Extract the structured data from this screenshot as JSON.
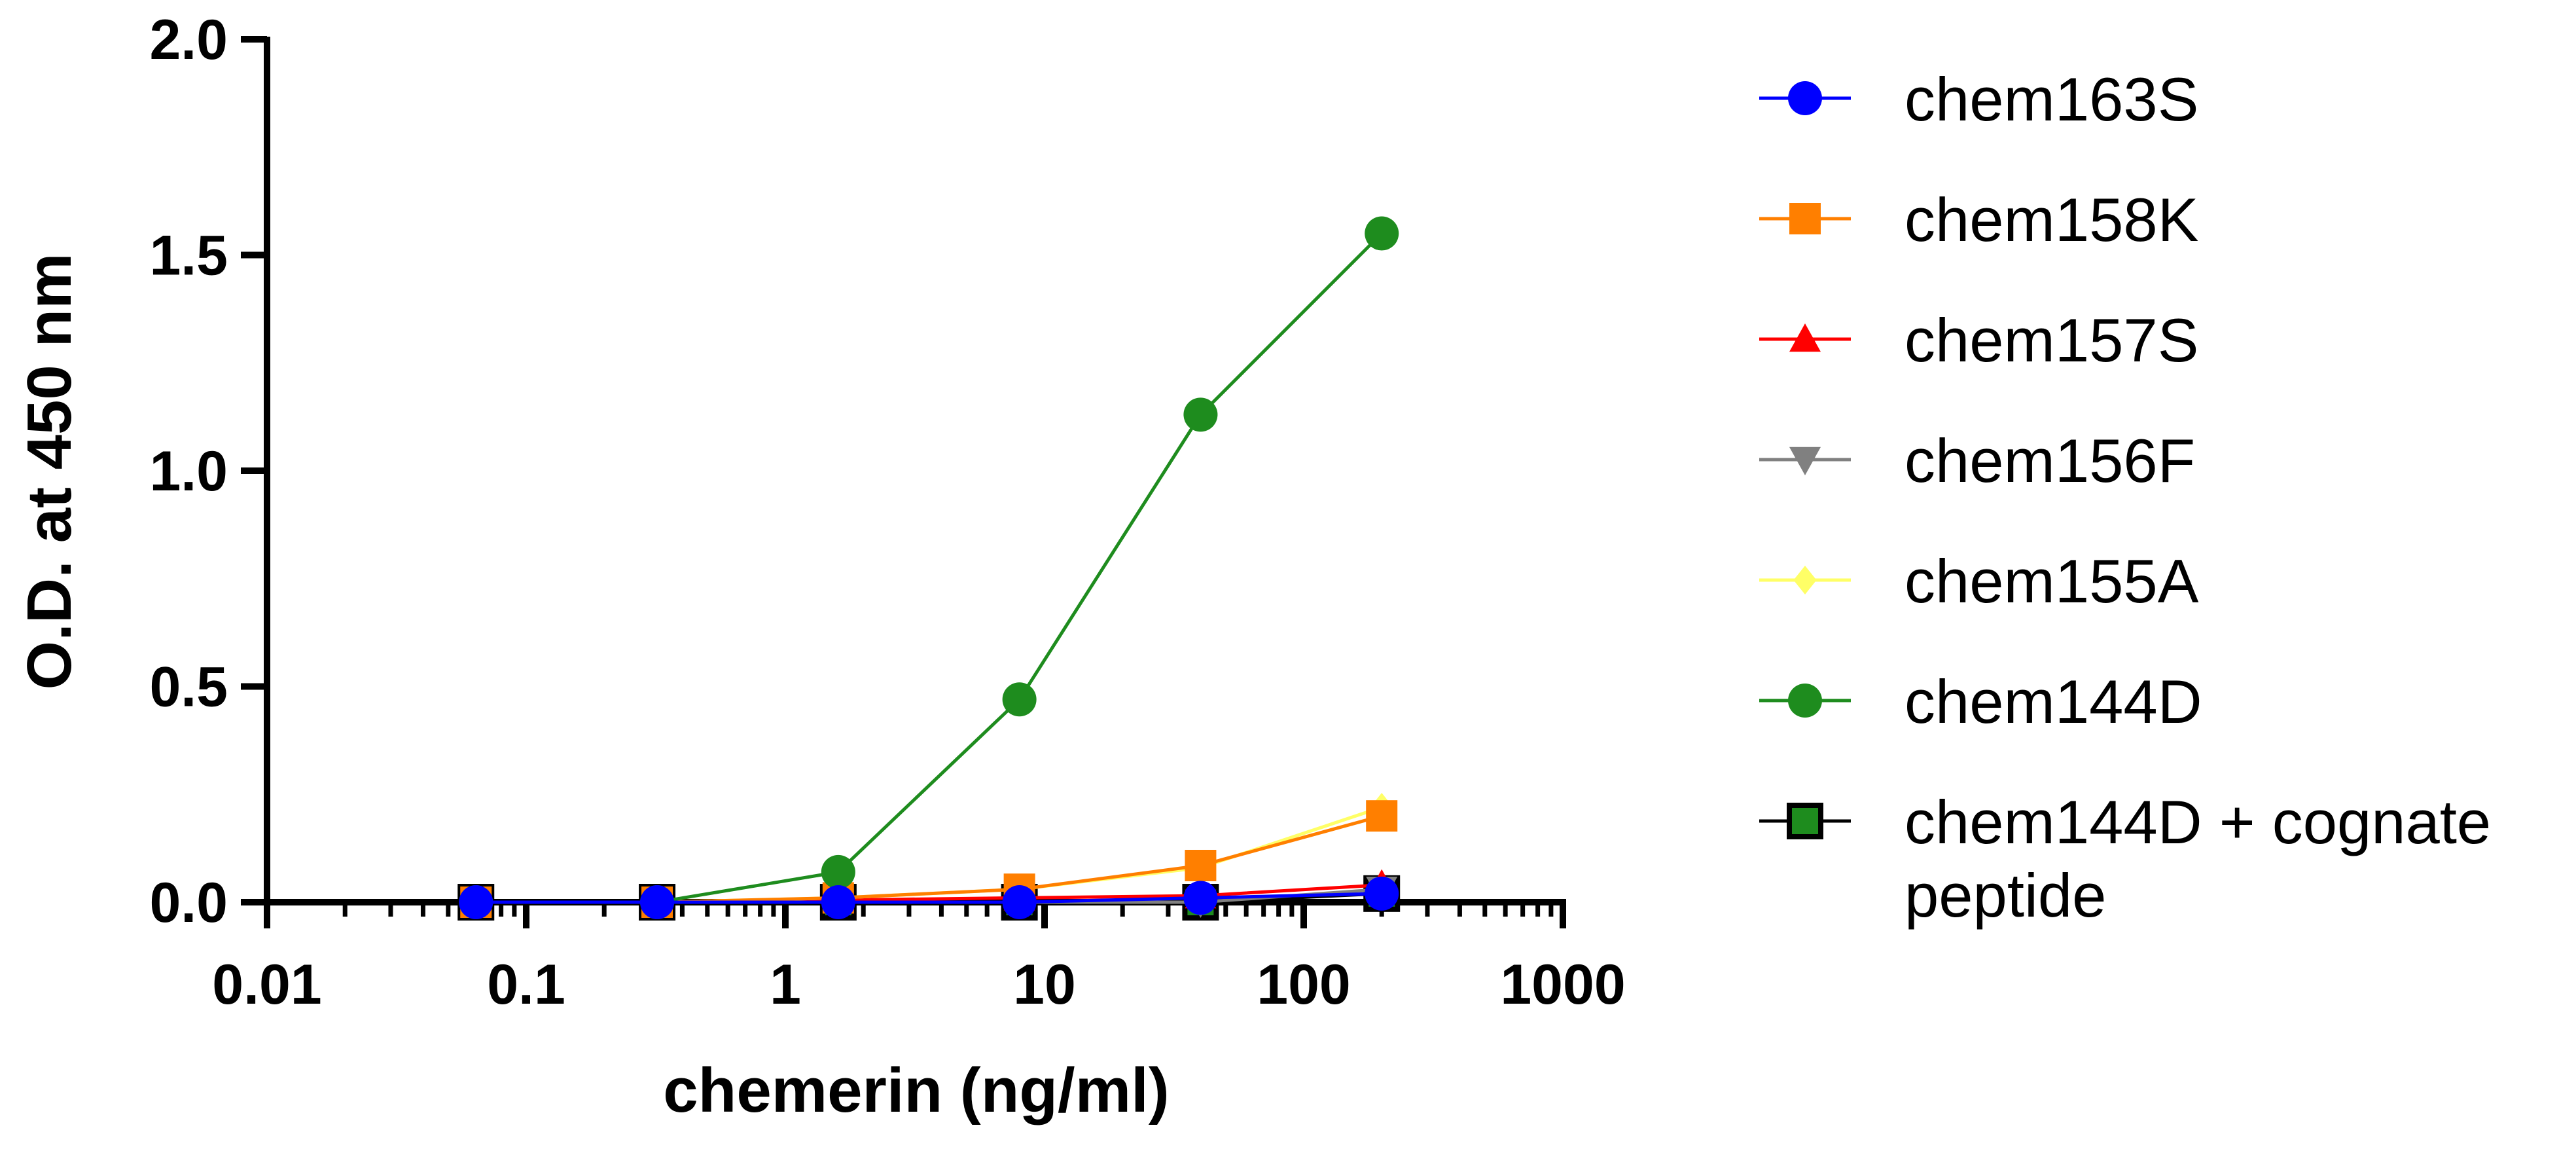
{
  "chart_data": {
    "type": "line",
    "title": "",
    "xlabel": "chemerin (ng/ml)",
    "ylabel": "O.D. at 450 nm",
    "xscale": "log",
    "xlim": [
      0.01,
      1000
    ],
    "ylim": [
      0,
      2.0
    ],
    "xticks": [
      0.01,
      0.1,
      1,
      10,
      100,
      1000
    ],
    "xtick_labels": [
      "0.01",
      "0.1",
      "1",
      "10",
      "100",
      "1000"
    ],
    "yticks": [
      0,
      0.5,
      1.0,
      1.5,
      2.0
    ],
    "ytick_labels": [
      "0.0",
      "0.5",
      "1.0",
      "1.5",
      "2.0"
    ],
    "grid": false,
    "legend_position": "right",
    "x": [
      0.064,
      0.32,
      1.6,
      8,
      40,
      200
    ],
    "series": [
      {
        "name": "chem144D + cognate peptide",
        "legend_lines": [
          "chem144D + cognate",
          "peptide"
        ],
        "color": "#000000",
        "fill": "#1e8c1e",
        "marker": "square",
        "values": [
          0.0,
          0.0,
          0.0,
          0.0,
          0.0,
          0.02
        ]
      },
      {
        "name": "chem156F",
        "color": "#808080",
        "fill": "#808080",
        "marker": "triangle-down",
        "values": [
          0.0,
          0.0,
          0.0,
          0.0,
          0.0,
          0.03
        ]
      },
      {
        "name": "chem157S",
        "color": "#ff0000",
        "fill": "#ff0000",
        "marker": "triangle-up",
        "values": [
          0.0,
          0.0,
          0.005,
          0.01,
          0.015,
          0.04
        ]
      },
      {
        "name": "chem155A",
        "color": "#ffff66",
        "fill": "#ffff66",
        "marker": "diamond",
        "values": [
          0.0,
          0.0,
          0.01,
          0.03,
          0.08,
          0.22
        ]
      },
      {
        "name": "chem158K",
        "color": "#ff7f00",
        "fill": "#ff7f00",
        "marker": "square",
        "values": [
          0.0,
          0.0,
          0.01,
          0.03,
          0.085,
          0.2
        ]
      },
      {
        "name": "chem144D",
        "color": "#1e8c1e",
        "fill": "#1e8c1e",
        "marker": "circle",
        "values": [
          0.0,
          0.0,
          0.07,
          0.47,
          1.13,
          1.55
        ]
      },
      {
        "name": "chem163S",
        "color": "#0000ff",
        "fill": "#0000ff",
        "marker": "circle",
        "values": [
          0.0,
          0.0,
          0.0,
          0.0,
          0.01,
          0.02
        ]
      }
    ],
    "legend_order": [
      "chem163S",
      "chem158K",
      "chem157S",
      "chem156F",
      "chem155A",
      "chem144D",
      "chem144D + cognate peptide"
    ]
  }
}
